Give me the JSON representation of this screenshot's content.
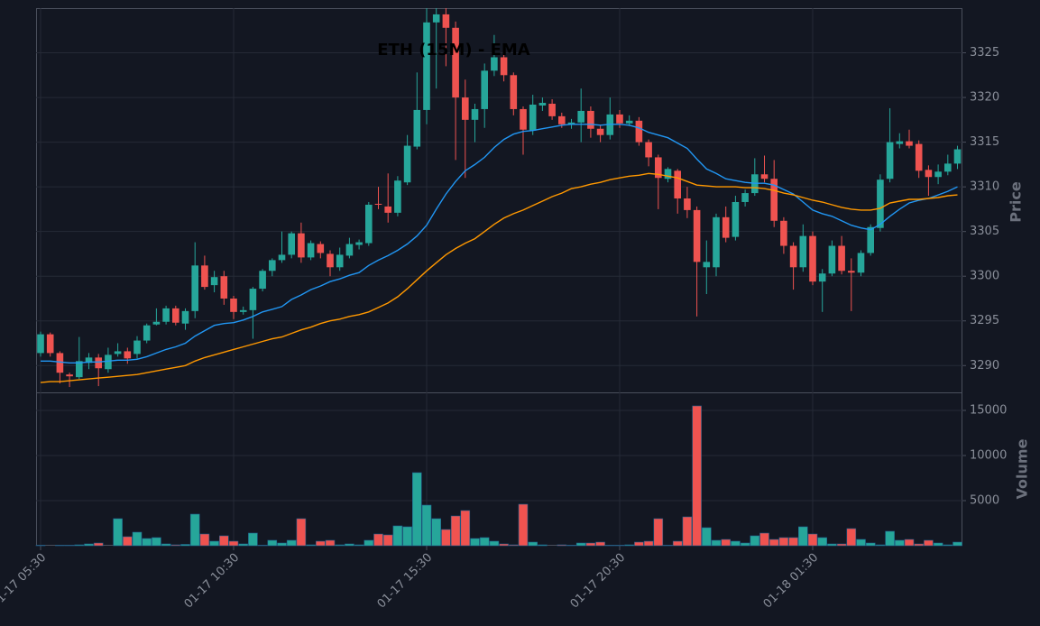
{
  "chart_data": [
    {
      "type": "candlestick",
      "title": "ETH (15M) - EMA",
      "ylabel": "Price",
      "ylim": [
        3287,
        3330
      ],
      "yticks": [
        3290,
        3295,
        3300,
        3305,
        3310,
        3315,
        3320,
        3325
      ],
      "grid": true,
      "up_color": "#26a69a",
      "down_color": "#ef5350",
      "open": [
        3291.4,
        3293.5,
        3291.4,
        3289.0,
        3288.7,
        3290.3,
        3290.9,
        3289.6,
        3291.3,
        3291.6,
        3291.3,
        3292.8,
        3294.6,
        3294.9,
        3296.4,
        3294.7,
        3296.1,
        3301.2,
        3299.0,
        3300.0,
        3297.5,
        3296.0,
        3296.2,
        3298.6,
        3300.6,
        3301.8,
        3302.4,
        3304.8,
        3302.1,
        3303.6,
        3302.5,
        3301.0,
        3302.3,
        3303.5,
        3303.7,
        3308.1,
        3307.8,
        3307.1,
        3310.5,
        3314.5,
        3318.6,
        3328.4,
        3329.3,
        3327.8,
        3320.0,
        3317.5,
        3318.7,
        3323.0,
        3324.5,
        3322.5,
        3318.7,
        3316.3,
        3319.1,
        3319.3,
        3317.9,
        3317.0,
        3317.2,
        3318.5,
        3316.5,
        3315.8,
        3318.1,
        3317.1,
        3317.4,
        3315.0,
        3313.3,
        3310.9,
        3311.8,
        3308.7,
        3307.4,
        3301.0,
        3301.0,
        3306.6,
        3304.4,
        3308.3,
        3309.3,
        3311.4,
        3310.9,
        3306.2,
        3303.4,
        3301.0,
        3304.5,
        3299.4,
        3300.3,
        3303.4,
        3300.6,
        3300.4,
        3302.6,
        3305.4,
        3310.9,
        3314.8,
        3315.1,
        3314.8,
        3311.9,
        3311.1,
        3311.7,
        3312.6
      ],
      "high": [
        3293.8,
        3293.7,
        3291.6,
        3289.2,
        3293.2,
        3291.4,
        3291.3,
        3292.0,
        3292.5,
        3292.0,
        3293.3,
        3294.7,
        3296.4,
        3296.7,
        3296.7,
        3296.4,
        3303.8,
        3302.3,
        3300.6,
        3300.6,
        3297.8,
        3296.6,
        3298.8,
        3300.8,
        3302.0,
        3305.0,
        3305.0,
        3306.0,
        3304.0,
        3303.9,
        3302.9,
        3303.2,
        3304.3,
        3304.1,
        3308.3,
        3310.0,
        3311.5,
        3311.2,
        3315.8,
        3322.8,
        3330.0,
        3330.0,
        3330.0,
        3328.5,
        3322.0,
        3319.3,
        3323.8,
        3327.0,
        3325.0,
        3322.8,
        3319.0,
        3320.3,
        3320.0,
        3319.8,
        3318.3,
        3317.6,
        3321.0,
        3319.0,
        3316.9,
        3320.0,
        3318.6,
        3318.0,
        3317.8,
        3315.3,
        3313.6,
        3312.2,
        3312.0,
        3310.0,
        3307.8,
        3304.0,
        3307.0,
        3307.8,
        3309.0,
        3309.7,
        3313.2,
        3313.5,
        3313.0,
        3306.6,
        3303.8,
        3305.8,
        3305.0,
        3300.8,
        3304.0,
        3304.5,
        3302.0,
        3302.9,
        3305.8,
        3311.4,
        3318.8,
        3316.0,
        3316.4,
        3315.2,
        3312.4,
        3312.5,
        3313.6,
        3314.6
      ],
      "low": [
        3291.0,
        3291.0,
        3288.0,
        3287.6,
        3288.5,
        3289.6,
        3287.7,
        3289.2,
        3291.0,
        3290.2,
        3290.8,
        3292.5,
        3294.5,
        3294.6,
        3294.5,
        3294.0,
        3295.3,
        3298.5,
        3298.2,
        3296.8,
        3295.2,
        3295.7,
        3293.0,
        3298.3,
        3300.0,
        3301.5,
        3302.0,
        3301.5,
        3301.8,
        3302.0,
        3300.0,
        3300.6,
        3302.0,
        3303.0,
        3303.4,
        3307.5,
        3306.0,
        3306.7,
        3310.2,
        3314.2,
        3317.0,
        3321.0,
        3323.5,
        3313.0,
        3311.0,
        3315.0,
        3316.6,
        3322.4,
        3321.8,
        3318.0,
        3313.6,
        3315.8,
        3318.5,
        3317.5,
        3316.6,
        3316.5,
        3315.0,
        3315.5,
        3315.0,
        3315.3,
        3316.6,
        3316.8,
        3314.6,
        3312.3,
        3307.5,
        3310.5,
        3307.0,
        3306.5,
        3295.5,
        3298.0,
        3300.0,
        3303.8,
        3304.0,
        3307.8,
        3309.0,
        3310.5,
        3305.5,
        3302.5,
        3298.5,
        3300.5,
        3299.0,
        3296.0,
        3300.0,
        3300.2,
        3296.1,
        3300.0,
        3302.3,
        3305.0,
        3310.5,
        3314.3,
        3314.3,
        3311.0,
        3309.0,
        3310.3,
        3311.3,
        3312.0
      ],
      "close": [
        3293.5,
        3291.4,
        3289.2,
        3288.8,
        3290.5,
        3290.9,
        3289.7,
        3291.2,
        3291.6,
        3290.8,
        3292.8,
        3294.5,
        3294.9,
        3296.4,
        3294.8,
        3296.1,
        3301.2,
        3298.8,
        3299.9,
        3297.5,
        3296.0,
        3296.2,
        3298.6,
        3300.6,
        3301.8,
        3302.4,
        3304.8,
        3302.1,
        3303.7,
        3302.6,
        3301.0,
        3302.4,
        3303.6,
        3303.8,
        3308.0,
        3308.0,
        3307.1,
        3310.7,
        3314.6,
        3318.6,
        3328.4,
        3329.3,
        3327.8,
        3320.0,
        3317.5,
        3318.7,
        3323.0,
        3324.5,
        3322.5,
        3318.7,
        3316.4,
        3319.2,
        3319.4,
        3317.9,
        3317.0,
        3317.2,
        3318.5,
        3316.5,
        3315.8,
        3318.1,
        3317.1,
        3317.4,
        3315.0,
        3313.3,
        3311.0,
        3312.0,
        3308.7,
        3307.4,
        3301.6,
        3301.6,
        3306.6,
        3304.3,
        3308.3,
        3309.3,
        3311.4,
        3310.9,
        3306.2,
        3303.4,
        3301.0,
        3304.5,
        3299.4,
        3300.3,
        3303.4,
        3300.6,
        3300.4,
        3302.6,
        3305.5,
        3310.8,
        3315.0,
        3315.1,
        3314.6,
        3311.8,
        3311.1,
        3311.7,
        3312.6,
        3314.2
      ],
      "series": [
        {
          "color": "#2196f3",
          "values": [
            3290.5,
            3290.5,
            3290.4,
            3290.3,
            3290.3,
            3290.4,
            3290.4,
            3290.5,
            3290.6,
            3290.6,
            3290.7,
            3291.0,
            3291.4,
            3291.8,
            3292.1,
            3292.5,
            3293.3,
            3293.9,
            3294.5,
            3294.7,
            3294.8,
            3295.1,
            3295.5,
            3296.0,
            3296.3,
            3296.6,
            3297.4,
            3297.9,
            3298.5,
            3298.9,
            3299.4,
            3299.7,
            3300.1,
            3300.4,
            3301.2,
            3301.8,
            3302.3,
            3302.9,
            3303.6,
            3304.5,
            3305.7,
            3307.5,
            3309.2,
            3310.6,
            3311.8,
            3312.5,
            3313.3,
            3314.4,
            3315.3,
            3315.9,
            3316.2,
            3316.3,
            3316.5,
            3316.7,
            3316.9,
            3317.0,
            3317.0,
            3317.0,
            3316.9,
            3317.0,
            3317.0,
            3316.9,
            3316.6,
            3316.1,
            3315.8,
            3315.5,
            3314.9,
            3314.3,
            3313.1,
            3312.0,
            3311.5,
            3310.9,
            3310.7,
            3310.5,
            3310.4,
            3310.4,
            3310.2,
            3309.7,
            3309.2,
            3308.3,
            3307.4,
            3307.0,
            3306.7,
            3306.2,
            3305.7,
            3305.4,
            3305.2,
            3305.8,
            3306.7,
            3307.5,
            3308.2,
            3308.5,
            3308.7,
            3309.1,
            3309.5,
            3310.0
          ]
        },
        {
          "color": "#ff9800",
          "values": [
            3288.1,
            3288.2,
            3288.2,
            3288.3,
            3288.4,
            3288.5,
            3288.6,
            3288.7,
            3288.8,
            3288.9,
            3289.0,
            3289.2,
            3289.4,
            3289.6,
            3289.8,
            3290.0,
            3290.5,
            3290.9,
            3291.2,
            3291.5,
            3291.8,
            3292.1,
            3292.4,
            3292.7,
            3293.0,
            3293.2,
            3293.6,
            3294.0,
            3294.3,
            3294.7,
            3295.0,
            3295.2,
            3295.5,
            3295.7,
            3296.0,
            3296.5,
            3297.0,
            3297.7,
            3298.6,
            3299.6,
            3300.6,
            3301.5,
            3302.4,
            3303.1,
            3303.7,
            3304.2,
            3305.0,
            3305.8,
            3306.5,
            3307.0,
            3307.4,
            3307.9,
            3308.4,
            3308.9,
            3309.3,
            3309.8,
            3310.0,
            3310.3,
            3310.5,
            3310.8,
            3311.0,
            3311.2,
            3311.3,
            3311.5,
            3311.4,
            3311.2,
            3311.0,
            3310.6,
            3310.2,
            3310.1,
            3310.0,
            3310.0,
            3310.0,
            3309.9,
            3309.9,
            3309.8,
            3309.6,
            3309.3,
            3309.1,
            3308.8,
            3308.5,
            3308.3,
            3308.0,
            3307.7,
            3307.5,
            3307.4,
            3307.4,
            3307.6,
            3308.2,
            3308.4,
            3308.6,
            3308.6,
            3308.7,
            3308.8,
            3309.0,
            3309.1
          ]
        }
      ]
    },
    {
      "type": "bar",
      "ylabel": "Volume",
      "ylim": [
        0,
        17000
      ],
      "yticks": [
        5000,
        10000,
        15000
      ],
      "grid": true,
      "categories": [
        "01-17 05:30",
        null,
        null,
        null,
        null,
        null,
        null,
        null,
        null,
        null,
        null,
        null,
        null,
        null,
        null,
        null,
        null,
        null,
        null,
        null,
        "01-17 10:30",
        null,
        null,
        null,
        null,
        null,
        null,
        null,
        null,
        null,
        null,
        null,
        null,
        null,
        null,
        null,
        null,
        null,
        null,
        null,
        "01-17 15:30",
        null,
        null,
        null,
        null,
        null,
        null,
        null,
        null,
        null,
        null,
        null,
        null,
        null,
        null,
        null,
        null,
        null,
        null,
        null,
        "01-17 20:30",
        null,
        null,
        null,
        null,
        null,
        null,
        null,
        null,
        null,
        null,
        null,
        null,
        null,
        null,
        null,
        null,
        null,
        null,
        null,
        "01-18 01:30",
        null,
        null,
        null,
        null,
        null,
        null,
        null,
        null,
        null,
        null,
        null,
        null,
        null,
        null,
        null
      ],
      "values": [
        50,
        0,
        50,
        50,
        100,
        200,
        300,
        0,
        3000,
        1000,
        1500,
        800,
        900,
        200,
        100,
        150,
        3500,
        1300,
        500,
        1100,
        500,
        200,
        1400,
        50,
        600,
        300,
        600,
        3000,
        100,
        500,
        600,
        100,
        200,
        100,
        600,
        1300,
        1200,
        2200,
        2100,
        8100,
        4500,
        3000,
        1800,
        3300,
        3900,
        800,
        900,
        500,
        200,
        100,
        4600,
        400,
        100,
        0,
        100,
        50,
        300,
        300,
        400,
        50,
        50,
        100,
        400,
        500,
        3000,
        50,
        500,
        3200,
        15500,
        2000,
        600,
        700,
        500,
        300,
        1100,
        1400,
        700,
        900,
        900,
        2100,
        1300,
        900,
        200,
        200,
        1900,
        700,
        300,
        100,
        1600,
        600,
        700,
        200,
        600,
        300,
        100,
        400
      ]
    }
  ]
}
